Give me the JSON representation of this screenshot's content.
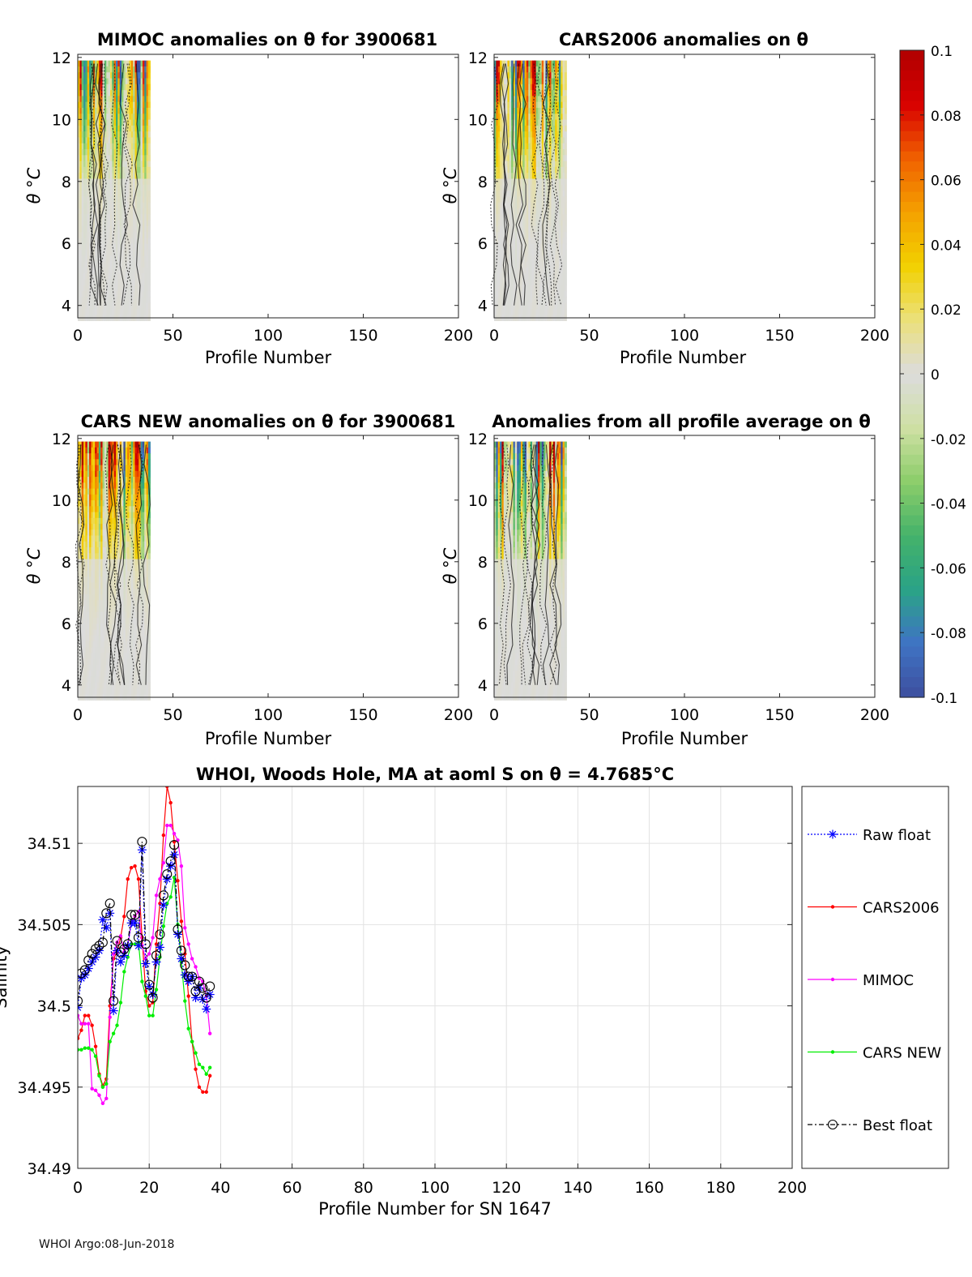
{
  "footer": "WHOI Argo:08-Jun-2018",
  "panels": [
    {
      "title": "MIMOC anomalies on θ  for 3900681",
      "xlabel": "Profile Number",
      "ylabel": "θ °C",
      "seed": 11
    },
    {
      "title": "CARS2006 anomalies on θ",
      "xlabel": "Profile Number",
      "ylabel": "θ °C",
      "seed": 23
    },
    {
      "title": "CARS NEW anomalies on θ for 3900681",
      "xlabel": "Profile Number",
      "ylabel": "θ °C",
      "seed": 37
    },
    {
      "title": "Anomalies from all profile average on θ",
      "xlabel": "Profile Number",
      "ylabel": "θ °C",
      "seed": 53
    }
  ],
  "panel_axes": {
    "xlim": [
      0,
      200
    ],
    "ylim": [
      3.6,
      12.1
    ],
    "xticks": [
      0,
      50,
      100,
      150,
      200
    ],
    "yticks": [
      4,
      6,
      8,
      10,
      12
    ],
    "data_extent_x": [
      0,
      38
    ]
  },
  "colorbar": {
    "ticks": [
      "0.1",
      "0.08",
      "0.06",
      "0.04",
      "0.02",
      "0",
      "-0.02",
      "-0.04",
      "-0.06",
      "-0.08",
      "-0.1"
    ],
    "range": [
      -0.1,
      0.1
    ],
    "colors": [
      "#3d4f9e",
      "#3f74c4",
      "#2aa386",
      "#45b26a",
      "#8ccd6a",
      "#cfe0a4",
      "#dcdcdc",
      "#ebe07a",
      "#f2d000",
      "#f4a000",
      "#f06000",
      "#d80000",
      "#b00000"
    ]
  },
  "chart_data": {
    "type": "line",
    "title": "WHOI, Woods Hole, MA at aoml S on θ = 4.7685°C",
    "xlabel": "Profile Number for SN 1647",
    "ylabel": "Salinity",
    "xlim": [
      0,
      200
    ],
    "ylim": [
      34.49,
      34.5135
    ],
    "xticks": [
      0,
      20,
      40,
      60,
      80,
      100,
      120,
      140,
      160,
      180,
      200
    ],
    "yticks": [
      34.49,
      34.495,
      34.5,
      34.505,
      34.51
    ],
    "ytick_labels": [
      "34.49",
      "34.495",
      "34.5",
      "34.505",
      "34.51"
    ],
    "x": [
      0,
      1,
      2,
      3,
      4,
      5,
      6,
      7,
      8,
      9,
      10,
      11,
      12,
      13,
      14,
      15,
      16,
      17,
      18,
      19,
      20,
      21,
      22,
      23,
      24,
      25,
      26,
      27,
      28,
      29,
      30,
      31,
      32,
      33,
      34,
      35,
      36,
      37
    ],
    "series": [
      {
        "name": "Raw float",
        "color": "#0000ff",
        "marker": "star",
        "dash": "2,2",
        "values": [
          34.4999,
          34.5017,
          34.5019,
          34.5023,
          34.5027,
          34.503,
          34.5034,
          34.5053,
          34.5048,
          34.5057,
          34.4997,
          34.5034,
          34.5027,
          34.5031,
          34.5037,
          34.5051,
          34.5051,
          34.5037,
          34.5096,
          34.5026,
          34.5012,
          34.5007,
          34.5027,
          34.5036,
          34.5062,
          34.5078,
          34.5086,
          34.5093,
          34.5044,
          34.5029,
          34.5019,
          34.5015,
          34.5018,
          34.5005,
          34.5011,
          34.5004,
          34.4998,
          34.5007
        ]
      },
      {
        "name": "CARS2006",
        "color": "#ff0000",
        "marker": "dot",
        "dash": "",
        "values": [
          34.498,
          34.4985,
          34.4994,
          34.4994,
          34.4988,
          34.4975,
          34.4958,
          34.4951,
          34.4955,
          34.5,
          34.5029,
          34.5033,
          34.5042,
          34.5055,
          34.5078,
          34.5085,
          34.5086,
          34.5078,
          34.5042,
          34.5009,
          34.5,
          34.5002,
          34.5038,
          34.5063,
          34.5105,
          34.5135,
          34.5125,
          34.5101,
          34.5077,
          34.5052,
          34.5032,
          34.5006,
          34.4978,
          34.4961,
          34.495,
          34.4947,
          34.4947,
          34.4957
        ]
      },
      {
        "name": "MIMOC",
        "color": "#ff00ff",
        "marker": "dot",
        "dash": "",
        "values": [
          34.4994,
          34.4989,
          34.4989,
          34.4989,
          34.4949,
          34.4948,
          34.4945,
          34.494,
          34.4943,
          34.4993,
          34.5032,
          34.5039,
          34.5043,
          34.5033,
          34.5037,
          34.5051,
          34.5055,
          34.5058,
          34.5037,
          34.5029,
          34.5032,
          34.5042,
          34.5068,
          34.5078,
          34.5088,
          34.5111,
          34.5111,
          34.5106,
          34.5102,
          34.5086,
          34.5048,
          34.5038,
          34.5029,
          34.5024,
          34.5017,
          34.5015,
          34.5006,
          34.4983
        ]
      },
      {
        "name": "CARS NEW",
        "color": "#00ee00",
        "marker": "dot",
        "dash": "",
        "values": [
          34.4973,
          34.4973,
          34.4974,
          34.4974,
          34.4973,
          34.4969,
          34.4957,
          34.495,
          34.4952,
          34.4978,
          34.4983,
          34.4988,
          34.5002,
          34.5021,
          34.503,
          34.5038,
          34.5038,
          34.5039,
          34.5015,
          34.5006,
          34.4994,
          34.4994,
          34.501,
          34.503,
          34.5049,
          34.5063,
          34.5067,
          34.5079,
          34.505,
          34.5027,
          34.5003,
          34.4986,
          34.4978,
          34.4971,
          34.4964,
          34.4962,
          34.4958,
          34.4962
        ]
      },
      {
        "name": "Best float",
        "color": "#000000",
        "marker": "circle",
        "dash": "6,3,2,3",
        "values": [
          34.5003,
          34.502,
          34.5022,
          34.5028,
          34.5032,
          34.5035,
          34.5037,
          34.5039,
          34.5057,
          34.5063,
          34.5003,
          34.504,
          34.5033,
          34.5035,
          34.5038,
          34.5056,
          34.5056,
          34.5042,
          34.5101,
          34.5038,
          34.5013,
          34.5005,
          34.5031,
          34.5044,
          34.5068,
          34.5081,
          34.5089,
          34.5099,
          34.5047,
          34.5034,
          34.5025,
          34.5018,
          34.5018,
          34.5009,
          34.5015,
          34.5011,
          34.5005,
          34.5012
        ]
      }
    ]
  }
}
